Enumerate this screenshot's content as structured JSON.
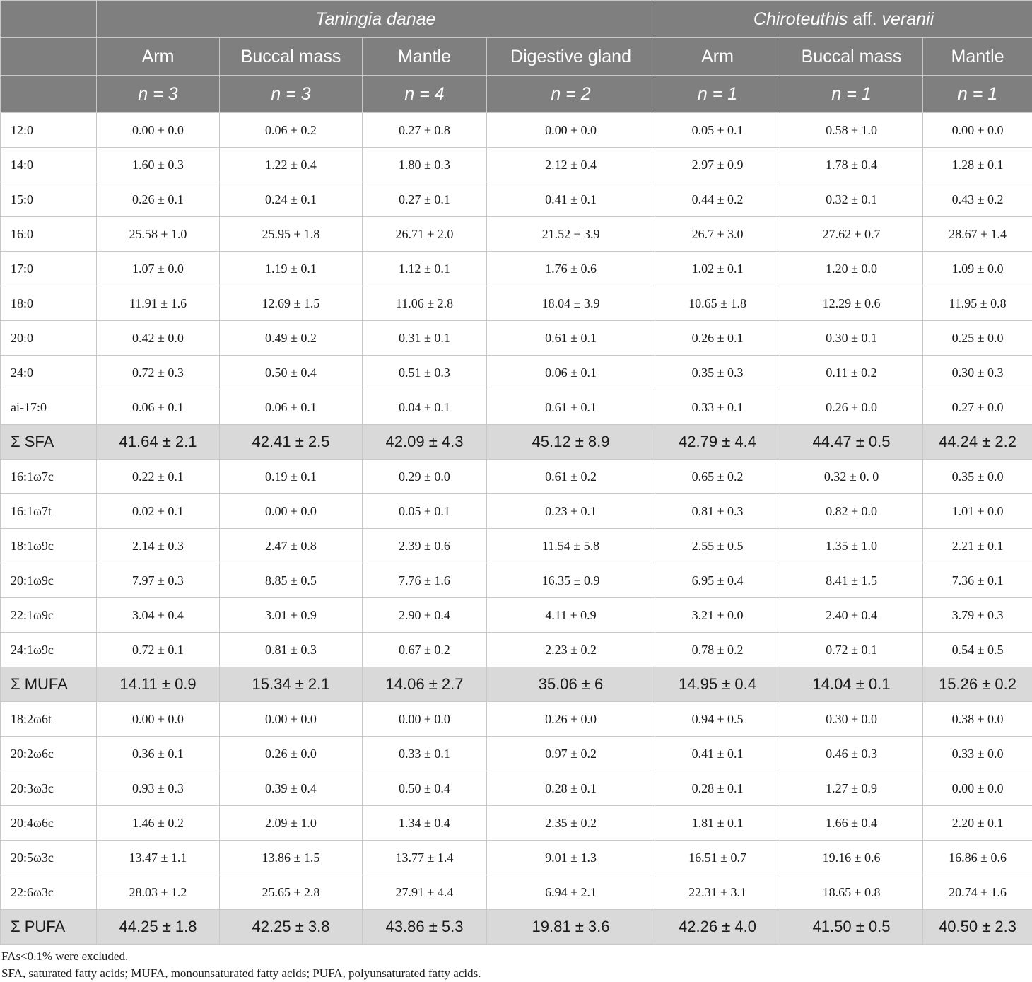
{
  "header": {
    "species": [
      "Taningia danae",
      "Chiroteuthis aff. veranii"
    ],
    "tissues": [
      "Arm",
      "Buccal mass",
      "Mantle",
      "Digestive gland",
      "Arm",
      "Buccal mass",
      "Mantle"
    ],
    "n": [
      "n = 3",
      "n = 3",
      "n = 4",
      "n = 2",
      "n = 1",
      "n = 1",
      "n = 1"
    ]
  },
  "rows": [
    {
      "label": "12:0",
      "values": [
        "0.00 ± 0.0",
        "0.06 ± 0.2",
        "0.27 ± 0.8",
        "0.00 ± 0.0",
        "0.05 ± 0.1",
        "0.58 ± 1.0",
        "0.00 ± 0.0"
      ]
    },
    {
      "label": "14:0",
      "values": [
        "1.60 ± 0.3",
        "1.22 ± 0.4",
        "1.80 ± 0.3",
        "2.12 ± 0.4",
        "2.97 ± 0.9",
        "1.78 ± 0.4",
        "1.28 ± 0.1"
      ]
    },
    {
      "label": "15:0",
      "values": [
        "0.26 ± 0.1",
        "0.24 ± 0.1",
        "0.27 ± 0.1",
        "0.41 ± 0.1",
        "0.44 ± 0.2",
        "0.32 ± 0.1",
        "0.43 ± 0.2"
      ]
    },
    {
      "label": "16:0",
      "values": [
        "25.58 ± 1.0",
        "25.95 ± 1.8",
        "26.71 ± 2.0",
        "21.52 ± 3.9",
        "26.7 ± 3.0",
        "27.62 ± 0.7",
        "28.67 ± 1.4"
      ]
    },
    {
      "label": "17:0",
      "values": [
        "1.07 ± 0.0",
        "1.19 ± 0.1",
        "1.12 ± 0.1",
        "1.76 ± 0.6",
        "1.02 ± 0.1",
        "1.20 ± 0.0",
        "1.09 ± 0.0"
      ]
    },
    {
      "label": "18:0",
      "values": [
        "11.91 ± 1.6",
        "12.69 ± 1.5",
        "11.06 ± 2.8",
        "18.04 ± 3.9",
        "10.65 ± 1.8",
        "12.29 ± 0.6",
        "11.95 ± 0.8"
      ]
    },
    {
      "label": "20:0",
      "values": [
        "0.42 ± 0.0",
        "0.49 ± 0.2",
        "0.31 ± 0.1",
        "0.61 ± 0.1",
        "0.26 ± 0.1",
        "0.30 ± 0.1",
        "0.25 ± 0.0"
      ]
    },
    {
      "label": "24:0",
      "values": [
        "0.72 ± 0.3",
        "0.50 ± 0.4",
        "0.51 ± 0.3",
        "0.06 ± 0.1",
        "0.35 ± 0.3",
        "0.11 ± 0.2",
        "0.30 ± 0.3"
      ]
    },
    {
      "label": "ai-17:0",
      "values": [
        "0.06 ± 0.1",
        "0.06 ± 0.1",
        "0.04 ± 0.1",
        "0.61 ± 0.1",
        "0.33 ± 0.1",
        "0.26 ± 0.0",
        "0.27 ± 0.0"
      ]
    },
    {
      "label": "Σ SFA",
      "sum": true,
      "values": [
        "41.64 ± 2.1",
        "42.41 ± 2.5",
        "42.09 ± 4.3",
        "45.12 ± 8.9",
        "42.79 ± 4.4",
        "44.47 ± 0.5",
        "44.24 ± 2.2"
      ]
    },
    {
      "label": "16:1ω7c",
      "values": [
        "0.22 ± 0.1",
        "0.19 ± 0.1",
        "0.29 ± 0.0",
        "0.61 ± 0.2",
        "0.65 ± 0.2",
        "0.32 ± 0. 0",
        "0.35 ± 0.0"
      ]
    },
    {
      "label": "16:1ω7t",
      "values": [
        "0.02 ± 0.1",
        "0.00 ± 0.0",
        "0.05 ± 0.1",
        "0.23 ± 0.1",
        "0.81 ± 0.3",
        "0.82 ± 0.0",
        "1.01 ± 0.0"
      ]
    },
    {
      "label": "18:1ω9c",
      "values": [
        "2.14 ± 0.3",
        "2.47 ± 0.8",
        "2.39 ± 0.6",
        "11.54 ± 5.8",
        "2.55 ± 0.5",
        "1.35 ± 1.0",
        "2.21 ± 0.1"
      ]
    },
    {
      "label": "20:1ω9c",
      "values": [
        "7.97 ± 0.3",
        "8.85 ± 0.5",
        "7.76 ± 1.6",
        "16.35 ± 0.9",
        "6.95 ± 0.4",
        "8.41 ± 1.5",
        "7.36 ± 0.1"
      ]
    },
    {
      "label": "22:1ω9c",
      "values": [
        "3.04 ± 0.4",
        "3.01 ± 0.9",
        "2.90 ± 0.4",
        "4.11 ± 0.9",
        "3.21 ± 0.0",
        "2.40 ± 0.4",
        "3.79 ± 0.3"
      ]
    },
    {
      "label": "24:1ω9c",
      "values": [
        "0.72 ± 0.1",
        "0.81 ± 0.3",
        "0.67 ± 0.2",
        "2.23 ± 0.2",
        "0.78 ± 0.2",
        "0.72 ± 0.1",
        "0.54 ± 0.5"
      ]
    },
    {
      "label": "Σ MUFA",
      "sum": true,
      "values": [
        "14.11 ± 0.9",
        "15.34 ± 2.1",
        "14.06 ± 2.7",
        "35.06 ± 6",
        "14.95 ± 0.4",
        "14.04 ± 0.1",
        "15.26 ± 0.2"
      ]
    },
    {
      "label": "18:2ω6t",
      "values": [
        "0.00 ± 0.0",
        "0.00 ± 0.0",
        "0.00 ± 0.0",
        "0.26 ± 0.0",
        "0.94 ± 0.5",
        "0.30 ± 0.0",
        "0.38 ± 0.0"
      ]
    },
    {
      "label": "20:2ω6c",
      "values": [
        "0.36 ± 0.1",
        "0.26 ± 0.0",
        "0.33 ± 0.1",
        "0.97 ± 0.2",
        "0.41 ± 0.1",
        "0.46 ± 0.3",
        "0.33 ± 0.0"
      ]
    },
    {
      "label": "20:3ω3c",
      "values": [
        "0.93 ± 0.3",
        "0.39 ± 0.4",
        "0.50 ± 0.4",
        "0.28 ± 0.1",
        "0.28 ± 0.1",
        "1.27 ± 0.9",
        "0.00 ± 0.0"
      ]
    },
    {
      "label": "20:4ω6c",
      "values": [
        "1.46 ± 0.2",
        "2.09 ± 1.0",
        "1.34 ± 0.4",
        "2.35 ± 0.2",
        "1.81 ± 0.1",
        "1.66 ± 0.4",
        "2.20 ± 0.1"
      ]
    },
    {
      "label": "20:5ω3c",
      "values": [
        "13.47 ± 1.1",
        "13.86 ± 1.5",
        "13.77 ± 1.4",
        "9.01 ± 1.3",
        "16.51 ± 0.7",
        "19.16 ± 0.6",
        "16.86 ± 0.6"
      ]
    },
    {
      "label": "22:6ω3c",
      "values": [
        "28.03 ± 1.2",
        "25.65 ± 2.8",
        "27.91 ± 4.4",
        "6.94 ± 2.1",
        "22.31 ± 3.1",
        "18.65 ± 0.8",
        "20.74 ± 1.6"
      ]
    },
    {
      "label": "Σ PUFA",
      "sum": true,
      "values": [
        "44.25 ± 1.8",
        "42.25 ± 3.8",
        "43.86 ± 5.3",
        "19.81 ± 3.6",
        "42.26 ± 4.0",
        "41.50 ± 0.5",
        "40.50 ± 2.3"
      ]
    }
  ],
  "footnotes": [
    "FAs<0.1% were excluded.",
    "SFA, saturated fatty acids; MUFA, monounsaturated fatty acids; PUFA, polyunsaturated fatty acids."
  ]
}
